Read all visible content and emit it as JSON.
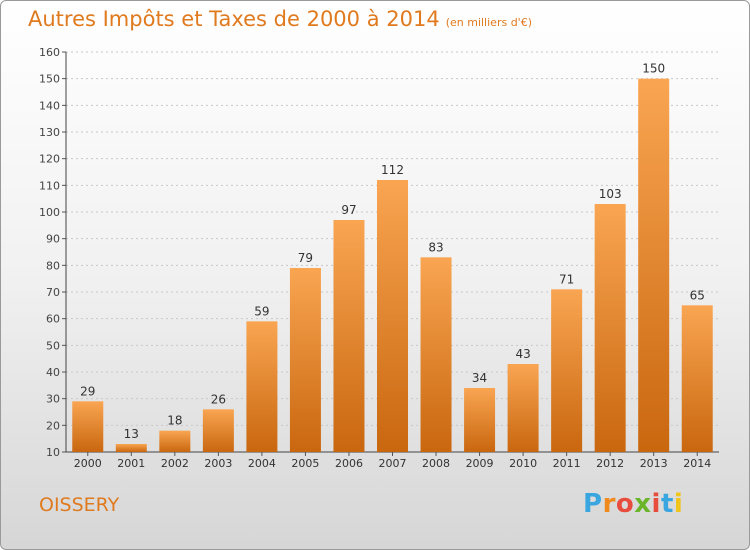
{
  "header": {
    "title": "Autres Impôts et Taxes de 2000 à 2014",
    "subtitle": "(en milliers d'€)"
  },
  "footer": {
    "town": "OISSERY",
    "logo": "Proxiti"
  },
  "colors": {
    "accent": "#e07a1f",
    "bar_top": "#f9a552",
    "bar_bottom": "#c9670f"
  },
  "chart_data": {
    "type": "bar",
    "title": "Autres Impôts et Taxes de 2000 à 2014",
    "subtitle": "(en milliers d'€)",
    "categories": [
      "2000",
      "2001",
      "2002",
      "2003",
      "2004",
      "2005",
      "2006",
      "2007",
      "2008",
      "2009",
      "2010",
      "2011",
      "2012",
      "2013",
      "2014"
    ],
    "values": [
      29,
      13,
      18,
      26,
      59,
      79,
      97,
      112,
      83,
      34,
      43,
      71,
      103,
      150,
      65
    ],
    "ylim": [
      10,
      160
    ],
    "yticks": [
      10,
      20,
      30,
      40,
      50,
      60,
      70,
      80,
      90,
      100,
      110,
      120,
      130,
      140,
      150,
      160
    ],
    "grid": true,
    "legend": "none"
  }
}
